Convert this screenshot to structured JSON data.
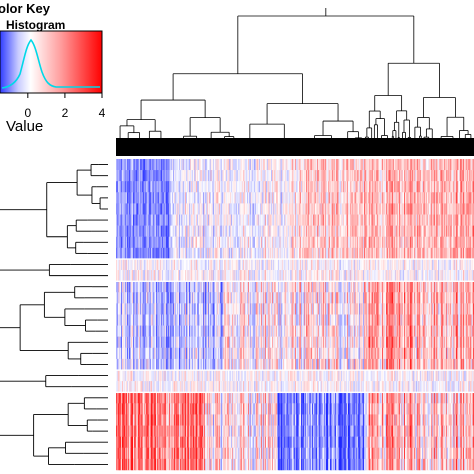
{
  "chart_data": {
    "type": "heatmap",
    "color_key": {
      "title_line1": "olor Key",
      "title_line2": "Histogram",
      "axis_label": "Value",
      "ticks": [
        0,
        2,
        4
      ],
      "range": [
        -1.5,
        4
      ],
      "colors": {
        "low": "#0000ff",
        "mid": "#ffffff",
        "high": "#ff0000"
      },
      "histogram_color": "#00e5ee"
    },
    "rows": 28,
    "columns": 420,
    "row_groups": [
      {
        "rows": 9,
        "trend": "blue-left-red-right"
      },
      {
        "rows": 2,
        "trend": "near-zero"
      },
      {
        "rows": 8,
        "trend": "mixed-red-right"
      },
      {
        "rows": 2,
        "trend": "near-zero"
      },
      {
        "rows": 7,
        "trend": "red-left-blue-center-red-right"
      }
    ],
    "dendrograms": {
      "row": true,
      "column": true
    }
  }
}
